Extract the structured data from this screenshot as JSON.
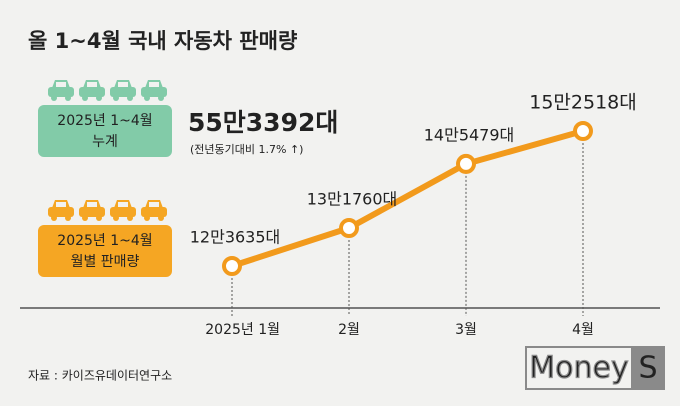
{
  "title": "올 1~4월 국내 자동차 판매량",
  "total_box": [
    "2025년 1~4월",
    "누계"
  ],
  "total_label": "55만3392대",
  "total_note": "(전년동기대비 1.7% ↑)",
  "monthly_box": [
    "2025년 1~4월",
    "월별 판매량"
  ],
  "source": "자료 : 카이즈유데이터연구소",
  "logo": [
    "Money",
    "S"
  ],
  "chart_data": {
    "type": "line",
    "categories": [
      "2025년 1월",
      "2월",
      "3월",
      "4월"
    ],
    "values": [
      123635,
      131760,
      145479,
      152518
    ],
    "value_labels": [
      "12만3635대",
      "13만1760대",
      "14만5479대",
      "15만2518대"
    ],
    "color": "#f29a1c"
  }
}
